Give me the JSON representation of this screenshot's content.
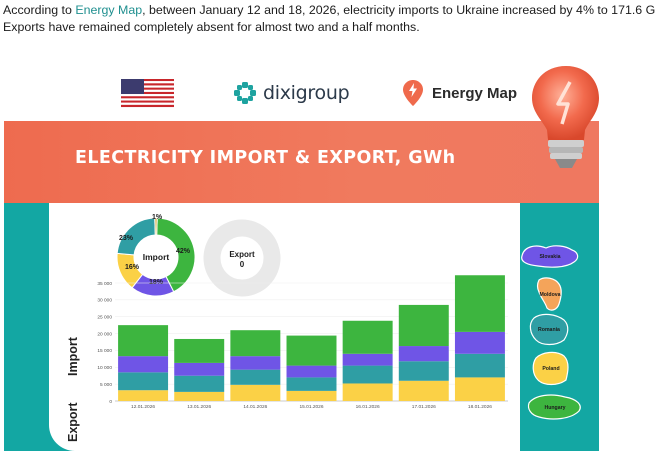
{
  "intro": {
    "line1_before": "According to ",
    "line1_link": "Energy Map",
    "line1_after": ", between January 12 and 18, 2026, electricity imports to Ukraine increased by 4% to 171.6 G",
    "line2": "Exports have remained completely absent for almost two and a half months."
  },
  "logos": {
    "flag_icon": "us-flag-icon",
    "dixi_name": "dixigroup",
    "energy_map_name": "Energy Map"
  },
  "banner": {
    "title": "ELECTRICITY IMPORT & EXPORT, GWh"
  },
  "colors": {
    "banner": "#ee6b4f",
    "teal": "#13a7a3",
    "green": "#3db53f",
    "purple": "#6f55e6",
    "teal_series": "#2f9ea4",
    "yellow": "#fbd146",
    "export_donut": "#e9e9e9"
  },
  "side_labels": {
    "import": "Import",
    "export": "Export"
  },
  "countries": [
    {
      "name": "Slovakia",
      "color": "#6f55e6"
    },
    {
      "name": "Moldova",
      "color": "#f4a45a"
    },
    {
      "name": "Romania",
      "color": "#2f9ea4"
    },
    {
      "name": "Poland",
      "color": "#fbd146"
    },
    {
      "name": "Hungary",
      "color": "#3db53f"
    }
  ],
  "chart_data": [
    {
      "type": "pie",
      "title": "Import",
      "slices": [
        {
          "label": "42%",
          "value": 42,
          "color": "#3db53f"
        },
        {
          "label": "18%",
          "value": 18,
          "color": "#6f55e6"
        },
        {
          "label": "16%",
          "value": 16,
          "color": "#fbd146"
        },
        {
          "label": "23%",
          "value": 23,
          "color": "#2f9ea4"
        },
        {
          "label": "1%",
          "value": 1,
          "color": "#d8b04a"
        }
      ]
    },
    {
      "type": "pie",
      "title": "Export",
      "value_label": "0",
      "slices": []
    },
    {
      "type": "bar",
      "stacked": true,
      "categories": [
        "12.01.2026",
        "13.01.2026",
        "14.01.2026",
        "15.01.2026",
        "16.01.2026",
        "17.01.2026",
        "18.01.2026"
      ],
      "yticks": [
        "0",
        "5 000",
        "10 000",
        "15 000",
        "20 000",
        "25 000",
        "30 000",
        "35 000"
      ],
      "ylim": [
        0,
        35000
      ],
      "series": [
        {
          "color": "#fbd146",
          "values": [
            3200,
            2700,
            4800,
            3000,
            5200,
            6000,
            7000
          ]
        },
        {
          "color": "#2f9ea4",
          "values": [
            5300,
            4800,
            4500,
            4000,
            5300,
            5800,
            7000
          ]
        },
        {
          "color": "#6f55e6",
          "values": [
            4800,
            3800,
            4000,
            3500,
            3500,
            4500,
            6500
          ]
        },
        {
          "color": "#3db53f",
          "values": [
            9200,
            7100,
            7700,
            8900,
            9800,
            12200,
            16800
          ]
        }
      ]
    }
  ]
}
